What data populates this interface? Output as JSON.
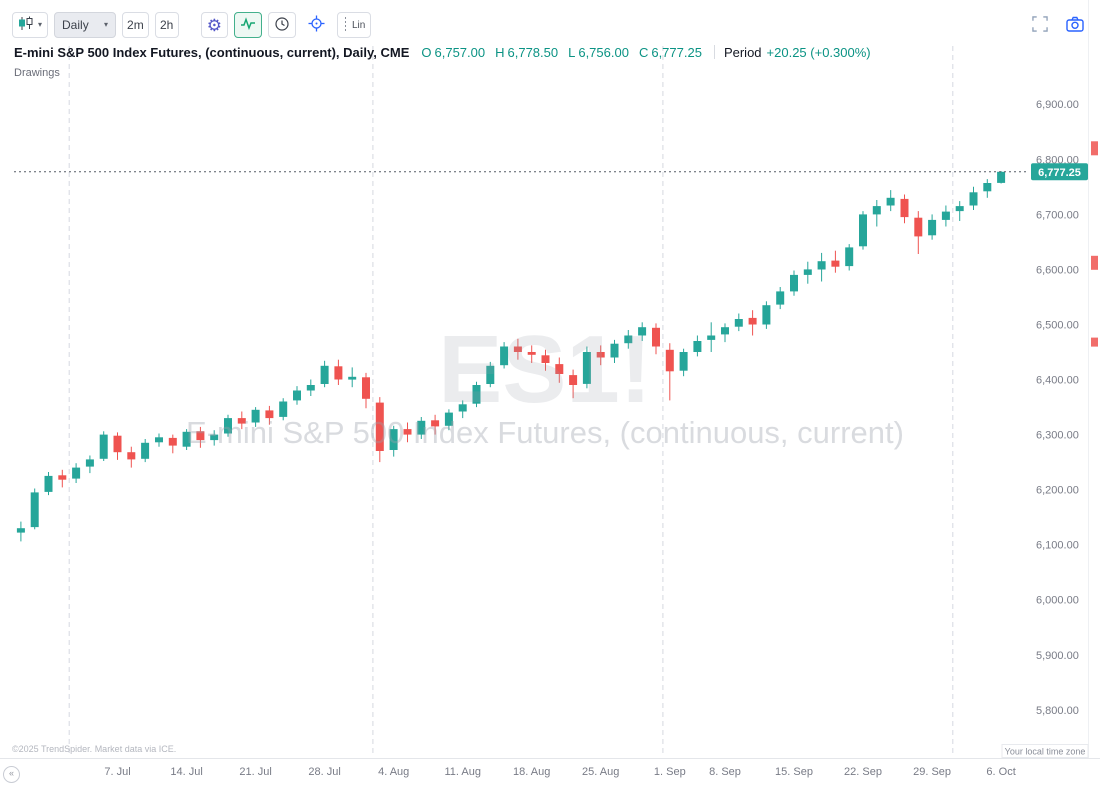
{
  "toolbar": {
    "chart_type_tooltip": "Chart type: Candles",
    "timeframe": "Daily",
    "quick_timeframes": [
      "2m",
      "2h"
    ],
    "linear_label": "Lin"
  },
  "header": {
    "title": "E-mini S&P 500 Index Futures, (continuous, current), Daily, CME",
    "ohlc": [
      {
        "label": "O",
        "value": "6,757.00"
      },
      {
        "label": "H",
        "value": "6,778.50"
      },
      {
        "label": "L",
        "value": "6,756.00"
      },
      {
        "label": "C",
        "value": "6,777.25"
      }
    ],
    "period_label": "Period",
    "period_value": "+20.25 (+0.300%)"
  },
  "panel": {
    "drawings_label": "Drawings"
  },
  "price_label": {
    "value": "6,777.25"
  },
  "watermark": {
    "symbol": "ES1!",
    "name": "E-mini S&P 500 Index Futures, (continuous, current)"
  },
  "footer": {
    "copyright": "©2025 TrendSpider. Market data via ICE.",
    "timezone_note": "Your local time zone"
  },
  "colors": {
    "up": "#26a69a",
    "down": "#ef5350",
    "accent": "#0b9384",
    "badge": "#26a69a",
    "grid": "#d5d8e0",
    "axis_text": "#787b86",
    "camera": "#2962ff",
    "gear": "#5558c8",
    "pulse": "#17a673"
  },
  "chart_data": {
    "type": "candlestick",
    "symbol": "ES1!",
    "title": "E-mini S&P 500 Index Futures, (continuous, current), Daily, CME",
    "timeframe": "Daily",
    "last_price": 6777.25,
    "change": "+20.25 (+0.300%)",
    "ylim": [
      5718,
      6984
    ],
    "price_ticks": [
      6900,
      6800,
      6700,
      6600,
      6500,
      6400,
      6300,
      6200,
      6100,
      6000,
      5900,
      5800
    ],
    "x_labels": [
      {
        "label": "7. Jul",
        "i": 7
      },
      {
        "label": "14. Jul",
        "i": 12
      },
      {
        "label": "21. Jul",
        "i": 17
      },
      {
        "label": "28. Jul",
        "i": 22
      },
      {
        "label": "4. Aug",
        "i": 27
      },
      {
        "label": "11. Aug",
        "i": 32
      },
      {
        "label": "18. Aug",
        "i": 37
      },
      {
        "label": "25. Aug",
        "i": 42
      },
      {
        "label": "1. Sep",
        "i": 47
      },
      {
        "label": "8. Sep",
        "i": 51
      },
      {
        "label": "15. Sep",
        "i": 56
      },
      {
        "label": "22. Sep",
        "i": 61
      },
      {
        "label": "29. Sep",
        "i": 66
      },
      {
        "label": "6. Oct",
        "i": 71
      }
    ],
    "month_lines": [
      4,
      26,
      47,
      68
    ],
    "grid": "vertical dashed month boundaries only",
    "legend": "none",
    "columns": [
      "date",
      "open",
      "high",
      "low",
      "close"
    ],
    "candles": [
      [
        "25 Jun",
        6122,
        6142,
        6106,
        6130
      ],
      [
        "26 Jun",
        6132,
        6202,
        6128,
        6195
      ],
      [
        "27 Jun",
        6196,
        6232,
        6190,
        6225
      ],
      [
        "30 Jun",
        6226,
        6236,
        6204,
        6218
      ],
      [
        "1 Jul",
        6220,
        6248,
        6212,
        6240
      ],
      [
        "2 Jul",
        6242,
        6262,
        6230,
        6255
      ],
      [
        "3 Jul",
        6256,
        6306,
        6252,
        6300
      ],
      [
        "7 Jul",
        6298,
        6304,
        6254,
        6268
      ],
      [
        "8 Jul",
        6268,
        6278,
        6240,
        6255
      ],
      [
        "9 Jul",
        6256,
        6292,
        6250,
        6285
      ],
      [
        "10 Jul",
        6286,
        6302,
        6278,
        6295
      ],
      [
        "11 Jul",
        6294,
        6300,
        6266,
        6280
      ],
      [
        "14 Jul",
        6278,
        6310,
        6272,
        6305
      ],
      [
        "15 Jul",
        6306,
        6314,
        6276,
        6290
      ],
      [
        "16 Jul",
        6290,
        6308,
        6280,
        6300
      ],
      [
        "17 Jul",
        6302,
        6336,
        6296,
        6330
      ],
      [
        "18 Jul",
        6330,
        6342,
        6310,
        6320
      ],
      [
        "21 Jul",
        6322,
        6350,
        6314,
        6345
      ],
      [
        "22 Jul",
        6344,
        6352,
        6318,
        6330
      ],
      [
        "23 Jul",
        6332,
        6366,
        6326,
        6360
      ],
      [
        "24 Jul",
        6362,
        6388,
        6354,
        6380
      ],
      [
        "25 Jul",
        6380,
        6400,
        6370,
        6390
      ],
      [
        "28 Jul",
        6392,
        6434,
        6386,
        6425
      ],
      [
        "29 Jul",
        6424,
        6436,
        6390,
        6400
      ],
      [
        "30 Jul",
        6400,
        6422,
        6386,
        6405
      ],
      [
        "31 Jul",
        6404,
        6412,
        6348,
        6365
      ],
      [
        "1 Aug",
        6358,
        6368,
        6250,
        6270
      ],
      [
        "4 Aug",
        6272,
        6316,
        6260,
        6310
      ],
      [
        "5 Aug",
        6310,
        6322,
        6286,
        6300
      ],
      [
        "6 Aug",
        6300,
        6332,
        6292,
        6325
      ],
      [
        "7 Aug",
        6326,
        6336,
        6300,
        6315
      ],
      [
        "8 Aug",
        6316,
        6346,
        6308,
        6340
      ],
      [
        "11 Aug",
        6342,
        6362,
        6330,
        6355
      ],
      [
        "12 Aug",
        6356,
        6396,
        6350,
        6390
      ],
      [
        "13 Aug",
        6392,
        6432,
        6386,
        6425
      ],
      [
        "14 Aug",
        6426,
        6468,
        6420,
        6460
      ],
      [
        "15 Aug",
        6460,
        6474,
        6436,
        6450
      ],
      [
        "18 Aug",
        6450,
        6462,
        6430,
        6445
      ],
      [
        "19 Aug",
        6444,
        6454,
        6416,
        6430
      ],
      [
        "20 Aug",
        6428,
        6440,
        6394,
        6410
      ],
      [
        "21 Aug",
        6408,
        6418,
        6366,
        6390
      ],
      [
        "22 Aug",
        6392,
        6460,
        6384,
        6450
      ],
      [
        "25 Aug",
        6450,
        6462,
        6426,
        6440
      ],
      [
        "26 Aug",
        6440,
        6472,
        6430,
        6465
      ],
      [
        "27 Aug",
        6466,
        6490,
        6456,
        6480
      ],
      [
        "28 Aug",
        6480,
        6504,
        6470,
        6495
      ],
      [
        "29 Aug",
        6494,
        6502,
        6446,
        6460
      ],
      [
        "2 Sep",
        6454,
        6466,
        6362,
        6415
      ],
      [
        "3 Sep",
        6416,
        6456,
        6406,
        6450
      ],
      [
        "4 Sep",
        6450,
        6480,
        6442,
        6470
      ],
      [
        "5 Sep",
        6472,
        6504,
        6450,
        6480
      ],
      [
        "8 Sep",
        6482,
        6502,
        6468,
        6495
      ],
      [
        "9 Sep",
        6496,
        6520,
        6488,
        6510
      ],
      [
        "10 Sep",
        6512,
        6526,
        6480,
        6500
      ],
      [
        "11 Sep",
        6500,
        6542,
        6492,
        6535
      ],
      [
        "12 Sep",
        6536,
        6568,
        6528,
        6560
      ],
      [
        "15 Sep",
        6560,
        6598,
        6552,
        6590
      ],
      [
        "16 Sep",
        6590,
        6614,
        6574,
        6600
      ],
      [
        "17 Sep",
        6600,
        6630,
        6578,
        6615
      ],
      [
        "18 Sep",
        6616,
        6634,
        6594,
        6605
      ],
      [
        "19 Sep",
        6606,
        6646,
        6598,
        6640
      ],
      [
        "22 Sep",
        6642,
        6706,
        6636,
        6700
      ],
      [
        "23 Sep",
        6700,
        6726,
        6678,
        6715
      ],
      [
        "24 Sep",
        6716,
        6744,
        6706,
        6730
      ],
      [
        "25 Sep",
        6728,
        6736,
        6684,
        6695
      ],
      [
        "26 Sep",
        6694,
        6706,
        6628,
        6660
      ],
      [
        "29 Sep",
        6662,
        6700,
        6654,
        6690
      ],
      [
        "30 Sep",
        6690,
        6716,
        6678,
        6705
      ],
      [
        "1 Oct",
        6706,
        6724,
        6688,
        6715
      ],
      [
        "2 Oct",
        6716,
        6750,
        6708,
        6740
      ],
      [
        "3 Oct",
        6742,
        6764,
        6730,
        6757
      ],
      [
        "6 Oct",
        6757,
        6778.5,
        6756,
        6777.25
      ]
    ],
    "edge_markers": [
      {
        "price": 6820,
        "height": 14
      },
      {
        "price": 6612,
        "height": 14
      },
      {
        "price": 6468,
        "height": 9
      }
    ]
  }
}
